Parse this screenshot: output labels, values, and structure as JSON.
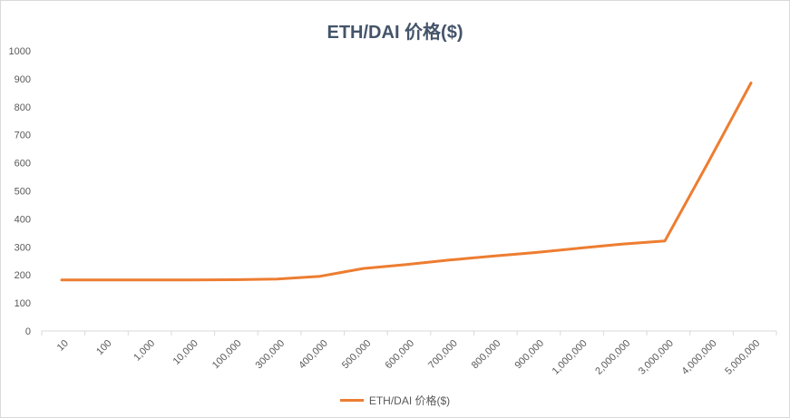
{
  "chart_data": {
    "type": "line",
    "title": "ETH/DAI 价格($)",
    "xlabel": "",
    "ylabel": "",
    "categories": [
      "10",
      "100",
      "1,000",
      "10,000",
      "100,000",
      "300,000",
      "400,000",
      "500,000",
      "600,000",
      "700,000",
      "800,000",
      "900,000",
      "1,000,000",
      "2,000,000",
      "3,000,000",
      "4,000,000",
      "5,000,000"
    ],
    "series": [
      {
        "name": "ETH/DAI 价格($)",
        "color": "#ed7d31",
        "values": [
          182,
          182,
          182,
          182,
          183,
          185,
          195,
          223,
          237,
          253,
          267,
          280,
          295,
          310,
          321,
          600,
          885
        ]
      }
    ],
    "y_ticks": [
      "0",
      "100",
      "200",
      "300",
      "400",
      "500",
      "600",
      "700",
      "800",
      "900",
      "1000"
    ],
    "ylim": [
      0,
      1000
    ],
    "grid": false,
    "legend_position": "bottom"
  }
}
